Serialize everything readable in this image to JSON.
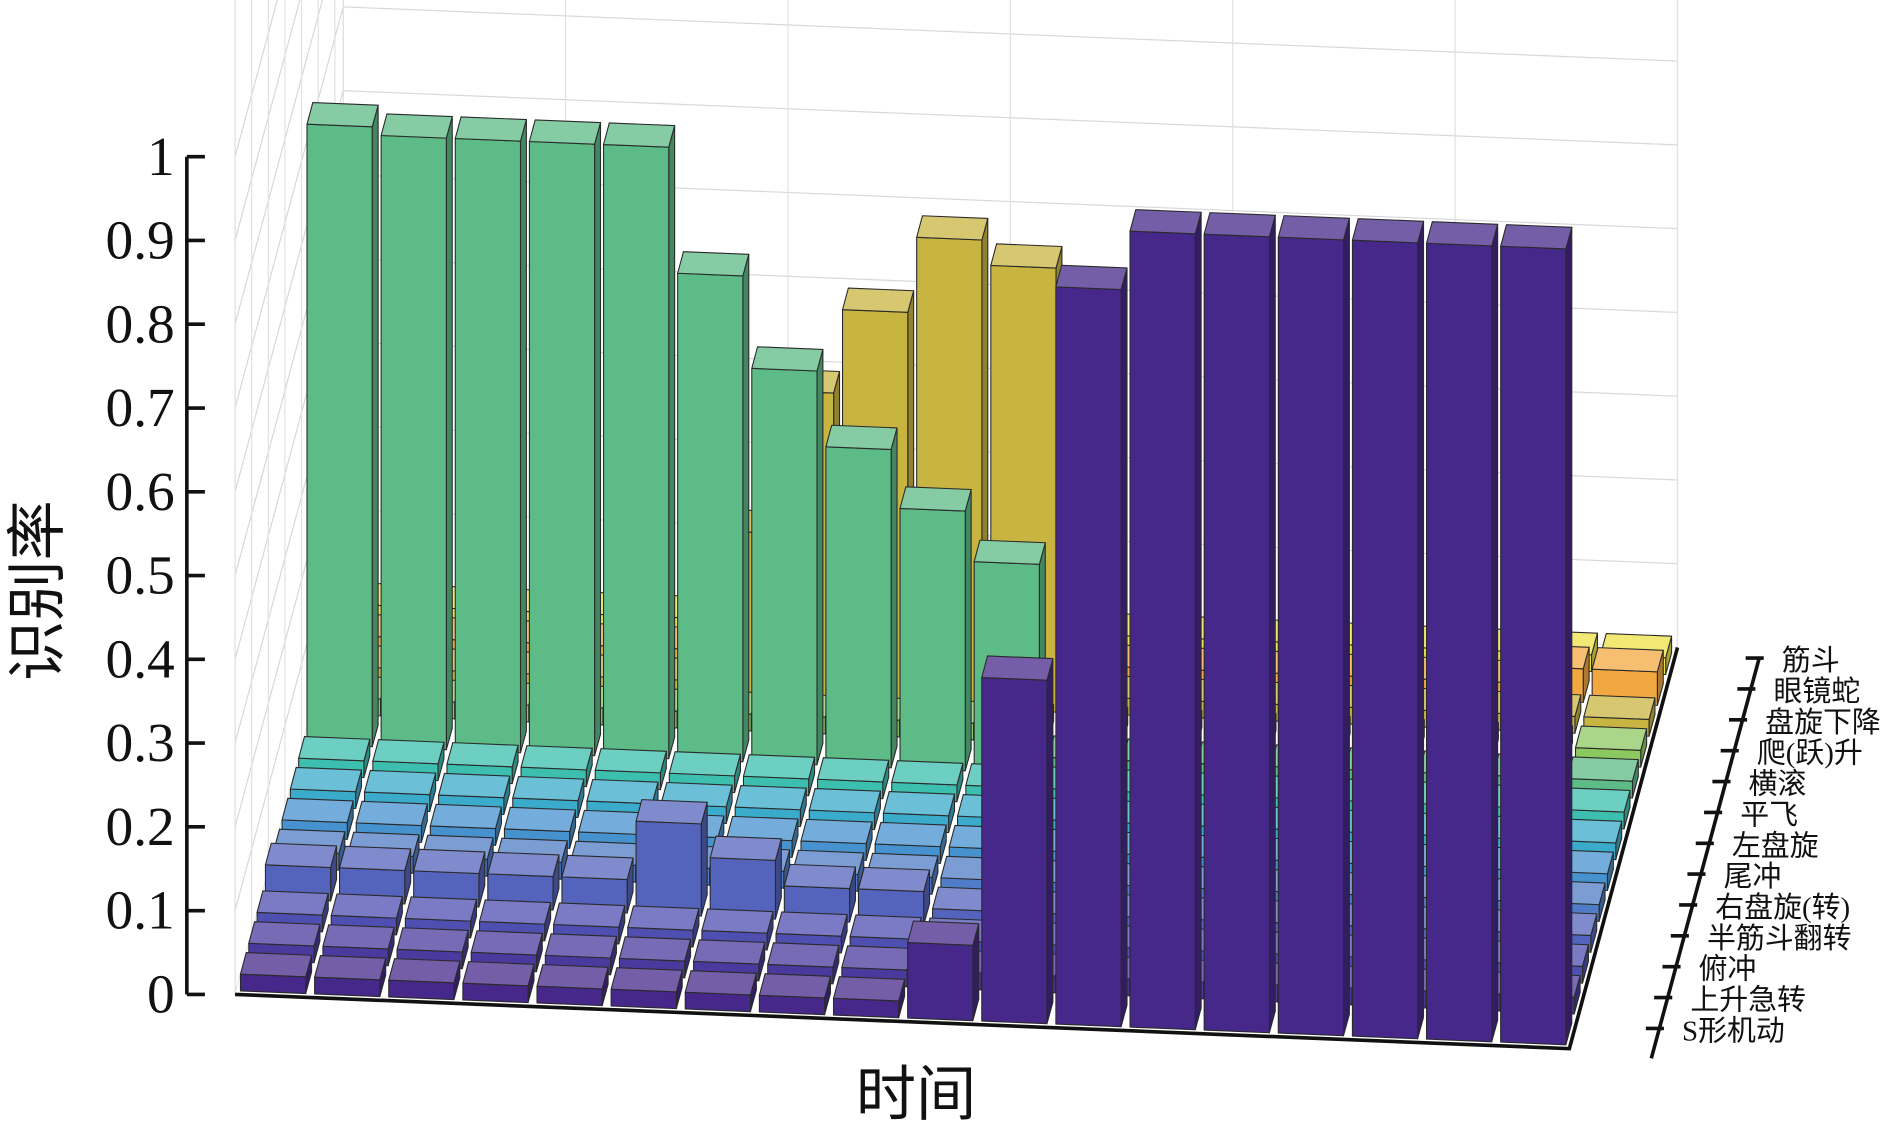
{
  "chart_data": {
    "type": "bar3d",
    "xlabel": "时间",
    "zlabel": "识别率",
    "zlim": [
      0,
      1
    ],
    "zticks": [
      0,
      0.1,
      0.2,
      0.3,
      0.4,
      0.5,
      0.6,
      0.7,
      0.8,
      0.9,
      1
    ],
    "grid": true,
    "series": [
      {
        "name": "S形机动",
        "color": "#46288a",
        "values": [
          0.02,
          0.02,
          0.02,
          0.02,
          0.02,
          0.02,
          0.02,
          0.02,
          0.02,
          0.09,
          0.41,
          0.88,
          0.95,
          0.95,
          0.95,
          0.95,
          0.95,
          0.95
        ]
      },
      {
        "name": "上升急转",
        "color": "#4a3a9e",
        "values": [
          0.02,
          0.02,
          0.02,
          0.02,
          0.02,
          0.02,
          0.02,
          0.02,
          0.02,
          0.02,
          0.02,
          0.02,
          0.02,
          0.02,
          0.02,
          0.02,
          0.02,
          0.02
        ]
      },
      {
        "name": "俯冲",
        "color": "#4e4fb0",
        "values": [
          0.02,
          0.02,
          0.02,
          0.02,
          0.02,
          0.02,
          0.02,
          0.02,
          0.02,
          0.02,
          0.02,
          0.02,
          0.02,
          0.02,
          0.02,
          0.02,
          0.02,
          0.02
        ]
      },
      {
        "name": "半筋斗翻转",
        "color": "#5464bc",
        "values": [
          0.04,
          0.04,
          0.04,
          0.04,
          0.04,
          0.11,
          0.07,
          0.04,
          0.04,
          0.02,
          0.02,
          0.02,
          0.02,
          0.02,
          0.02,
          0.02,
          0.02,
          0.02
        ]
      },
      {
        "name": "右盘旋(转)",
        "color": "#4f7cc6",
        "values": [
          0.02,
          0.02,
          0.02,
          0.02,
          0.02,
          0.02,
          0.02,
          0.02,
          0.02,
          0.02,
          0.02,
          0.02,
          0.02,
          0.02,
          0.02,
          0.02,
          0.02,
          0.02
        ]
      },
      {
        "name": "尾冲",
        "color": "#4592cf",
        "values": [
          0.02,
          0.02,
          0.02,
          0.02,
          0.02,
          0.02,
          0.02,
          0.02,
          0.02,
          0.02,
          0.02,
          0.02,
          0.02,
          0.02,
          0.02,
          0.02,
          0.02,
          0.02
        ]
      },
      {
        "name": "左盘旋",
        "color": "#3aabcb",
        "values": [
          0.02,
          0.02,
          0.02,
          0.02,
          0.02,
          0.02,
          0.02,
          0.02,
          0.02,
          0.02,
          0.02,
          0.02,
          0.02,
          0.02,
          0.02,
          0.02,
          0.02,
          0.02
        ]
      },
      {
        "name": "平飞",
        "color": "#3cbfae",
        "values": [
          0.02,
          0.02,
          0.02,
          0.02,
          0.02,
          0.02,
          0.02,
          0.02,
          0.02,
          0.02,
          0.02,
          0.02,
          0.02,
          0.02,
          0.02,
          0.02,
          0.02,
          0.02
        ]
      },
      {
        "name": "横滚",
        "color": "#5cbb86",
        "values": [
          0.74,
          0.73,
          0.73,
          0.73,
          0.73,
          0.58,
          0.47,
          0.38,
          0.31,
          0.25,
          0.02,
          0.02,
          0.02,
          0.02,
          0.02,
          0.02,
          0.02,
          0.02
        ]
      },
      {
        "name": "爬(跃)升",
        "color": "#8cc860",
        "values": [
          0.02,
          0.02,
          0.02,
          0.02,
          0.02,
          0.02,
          0.02,
          0.02,
          0.02,
          0.02,
          0.02,
          0.02,
          0.02,
          0.02,
          0.02,
          0.02,
          0.02,
          0.02
        ]
      },
      {
        "name": "盘旋下降",
        "color": "#c8b440",
        "values": [
          0.02,
          0.02,
          0.02,
          0.02,
          0.02,
          0.2,
          0.37,
          0.47,
          0.56,
          0.53,
          0.02,
          0.02,
          0.02,
          0.02,
          0.02,
          0.02,
          0.02,
          0.02
        ]
      },
      {
        "name": "眼镜蛇",
        "color": "#f2a840",
        "values": [
          0.02,
          0.02,
          0.02,
          0.02,
          0.02,
          0.02,
          0.02,
          0.02,
          0.02,
          0.02,
          0.02,
          0.02,
          0.02,
          0.02,
          0.02,
          0.02,
          0.04,
          0.04
        ]
      },
      {
        "name": "筋斗",
        "color": "#ece245",
        "values": [
          0.02,
          0.02,
          0.02,
          0.02,
          0.02,
          0.02,
          0.02,
          0.02,
          0.02,
          0.02,
          0.02,
          0.02,
          0.02,
          0.02,
          0.02,
          0.02,
          0.02,
          0.02
        ]
      }
    ]
  }
}
